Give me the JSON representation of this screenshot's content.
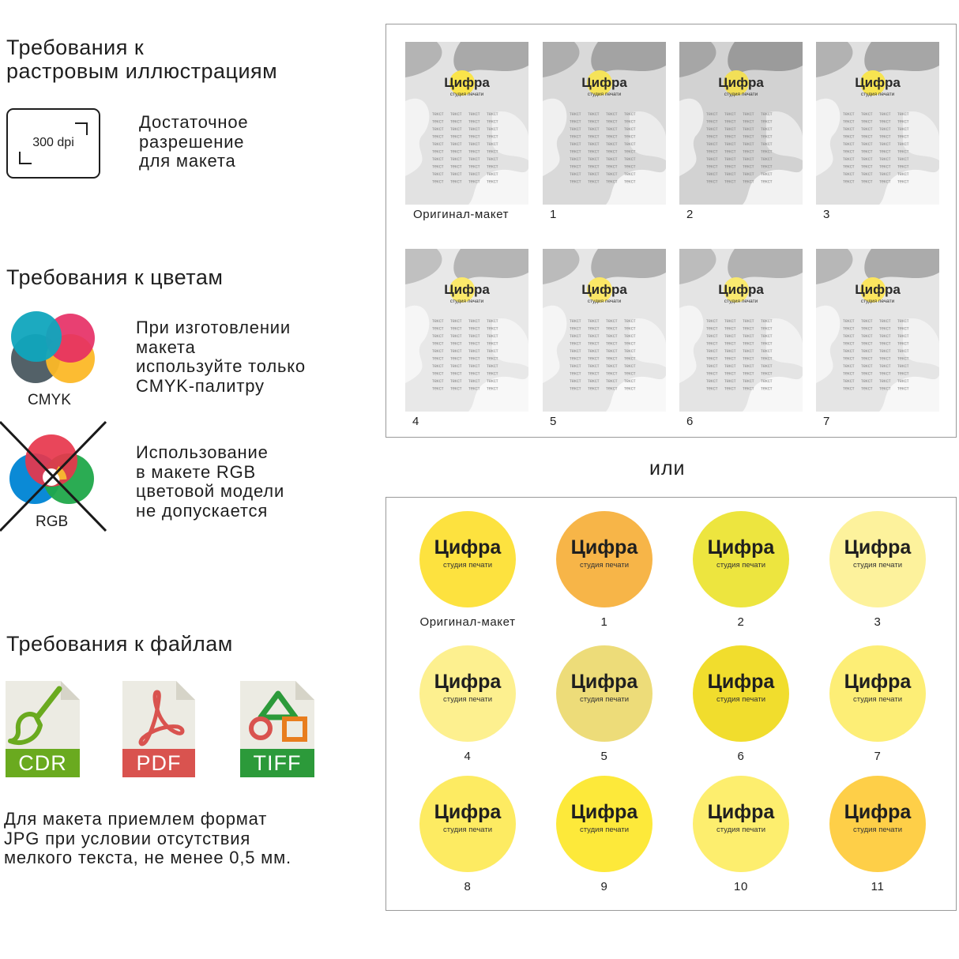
{
  "raster": {
    "title_line1": "Требования к",
    "title_line2": "растровым иллюстрациям",
    "dpi": "300 dpi",
    "desc": [
      "Достаточное",
      "разрешение",
      "для макета"
    ]
  },
  "colors": {
    "title": "Требования к цветам",
    "cmyk_label": "CMYK",
    "cmyk_desc": [
      "При изготовлении",
      "макета",
      "используйте только",
      "CMYK-палитру"
    ],
    "rgb_label": "RGB",
    "rgb_desc": [
      "Использование",
      "в макете RGB",
      "цветовой модели",
      "не допускается"
    ]
  },
  "files": {
    "title": "Требования к файлам",
    "formats": [
      {
        "label": "CDR",
        "color": "#6aaa1f",
        "icon": "brush-icon"
      },
      {
        "label": "PDF",
        "color": "#d9534f",
        "icon": "acrobat-icon"
      },
      {
        "label": "TIFF",
        "color": "#2c9a3a",
        "icon": "shapes-icon"
      }
    ],
    "note": [
      "Для макета приемлем формат",
      "JPG при условии отсутствия",
      "мелкого текста, не менее 0,5 мм."
    ]
  },
  "thumbs": {
    "captions": [
      "Оригинал-макет",
      "1",
      "2",
      "3",
      "4",
      "5",
      "6",
      "7"
    ],
    "brand": "Цифра",
    "sub": "студия печати",
    "word": "текст"
  },
  "or_label": "или",
  "circles": {
    "brand": "Цифра",
    "sub": "студия печати",
    "items": [
      {
        "caption": "Оригинал-макет",
        "color": "#fde23f"
      },
      {
        "caption": "1",
        "color": "#f7b548"
      },
      {
        "caption": "2",
        "color": "#ede53f"
      },
      {
        "caption": "3",
        "color": "#fdf29c"
      },
      {
        "caption": "4",
        "color": "#fdf08f"
      },
      {
        "caption": "5",
        "color": "#eddc79"
      },
      {
        "caption": "6",
        "color": "#f1dd2d"
      },
      {
        "caption": "7",
        "color": "#fdee76"
      },
      {
        "caption": "8",
        "color": "#fdeb62"
      },
      {
        "caption": "9",
        "color": "#fde93a"
      },
      {
        "caption": "10",
        "color": "#fdee6e"
      },
      {
        "caption": "11",
        "color": "#fecf48"
      }
    ]
  }
}
